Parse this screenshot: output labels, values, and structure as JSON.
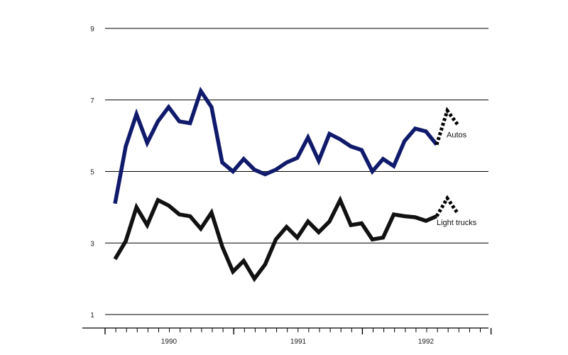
{
  "chart_data": {
    "type": "line",
    "title": "",
    "xlabel": "",
    "ylabel": "",
    "x_tick_labels": [
      "1990",
      "1991",
      "1992"
    ],
    "y_ticks": [
      1,
      3,
      5,
      7,
      9
    ],
    "y_tick_labels": [
      "1",
      "3",
      "5",
      "7",
      "9"
    ],
    "ylim": [
      0.6,
      9.4
    ],
    "grid": "horizontal",
    "months_per_year_tick": 12,
    "series": [
      {
        "name": "Autos",
        "color": "#101a6b",
        "values": [
          4.1,
          5.7,
          6.6,
          5.8,
          6.4,
          6.8,
          6.4,
          6.35,
          7.25,
          6.8,
          5.25,
          5.0,
          5.35,
          5.05,
          4.92,
          5.05,
          5.25,
          5.38,
          5.95,
          5.3,
          6.05,
          5.9,
          5.7,
          5.6,
          5.0,
          5.35,
          5.15,
          5.85,
          6.2,
          6.12,
          5.75
        ],
        "projection": [
          5.75,
          6.7,
          6.3
        ]
      },
      {
        "name": "Light trucks",
        "color": "#111111",
        "values": [
          2.55,
          3.05,
          4.0,
          3.5,
          4.2,
          4.05,
          3.8,
          3.75,
          3.4,
          3.85,
          2.9,
          2.2,
          2.5,
          2.0,
          2.4,
          3.1,
          3.45,
          3.15,
          3.6,
          3.3,
          3.6,
          4.2,
          3.5,
          3.55,
          3.1,
          3.15,
          3.8,
          3.75,
          3.72,
          3.62,
          3.75
        ],
        "projection": [
          3.75,
          4.25,
          3.82
        ]
      }
    ]
  }
}
